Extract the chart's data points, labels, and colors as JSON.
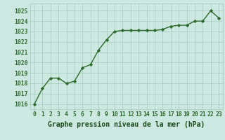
{
  "x": [
    0,
    1,
    2,
    3,
    4,
    5,
    6,
    7,
    8,
    9,
    10,
    11,
    12,
    13,
    14,
    15,
    16,
    17,
    18,
    19,
    20,
    21,
    22,
    23
  ],
  "y": [
    1016.0,
    1017.5,
    1018.5,
    1018.5,
    1018.0,
    1018.2,
    1019.5,
    1019.8,
    1021.2,
    1022.2,
    1023.0,
    1023.1,
    1023.1,
    1023.1,
    1023.1,
    1023.1,
    1023.2,
    1023.5,
    1023.6,
    1023.6,
    1024.0,
    1024.0,
    1025.0,
    1024.3
  ],
  "line_color": "#2d6a2d",
  "marker": "D",
  "marker_size": 2.2,
  "bg_color": "#cce8e0",
  "grid_color": "#a8cfc4",
  "xlabel": "Graphe pression niveau de la mer (hPa)",
  "xlabel_color": "#1a4a1a",
  "ytick_labels": [
    1016,
    1017,
    1018,
    1019,
    1020,
    1021,
    1022,
    1023,
    1024,
    1025
  ],
  "ylim": [
    1015.5,
    1025.7
  ],
  "xlim": [
    -0.5,
    23.5
  ],
  "tick_fontsize": 5.8,
  "xlabel_fontsize": 7.0,
  "linewidth": 1.0
}
